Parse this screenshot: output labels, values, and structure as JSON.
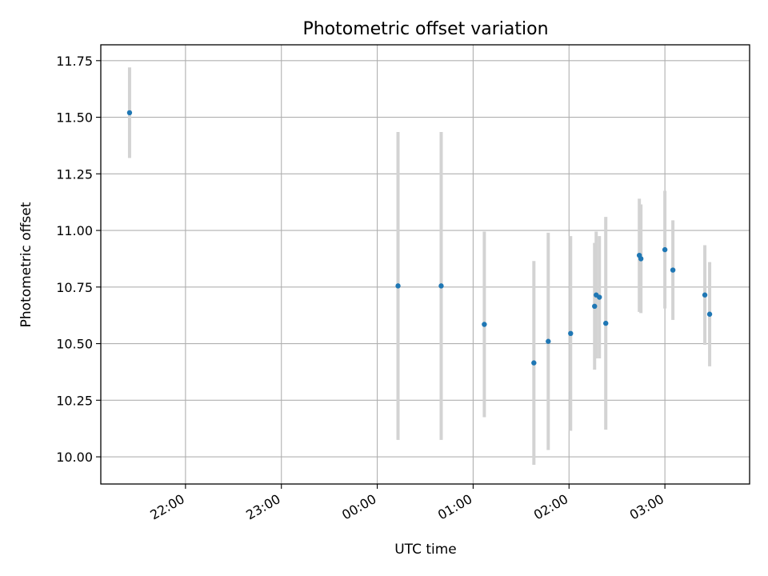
{
  "chart_data": {
    "type": "scatter",
    "title": "Photometric offset variation",
    "xlabel": "UTC time",
    "ylabel": "Photometric offset",
    "x_ticks": [
      "22:00",
      "23:00",
      "00:00",
      "01:00",
      "02:00",
      "03:00"
    ],
    "y_ticks": [
      "10.00",
      "10.25",
      "10.50",
      "10.75",
      "11.00",
      "11.25",
      "11.50",
      "11.75"
    ],
    "xlim": [
      "21:07",
      "03:53"
    ],
    "ylim": [
      9.88,
      11.82
    ],
    "grid": true,
    "colors": {
      "point": "#1f77b4",
      "errorbar": "#d3d3d3"
    },
    "points": [
      {
        "time": "21:25",
        "y": 11.52,
        "err": 0.2
      },
      {
        "time": "00:13",
        "y": 10.755,
        "err": 0.68
      },
      {
        "time": "00:40",
        "y": 10.755,
        "err": 0.68
      },
      {
        "time": "01:07",
        "y": 10.585,
        "err": 0.41
      },
      {
        "time": "01:38",
        "y": 10.415,
        "err": 0.45
      },
      {
        "time": "01:47",
        "y": 10.51,
        "err": 0.48
      },
      {
        "time": "02:01",
        "y": 10.545,
        "err": 0.43
      },
      {
        "time": "02:16",
        "y": 10.665,
        "err": 0.28
      },
      {
        "time": "02:17",
        "y": 10.715,
        "err": 0.28
      },
      {
        "time": "02:19",
        "y": 10.705,
        "err": 0.27
      },
      {
        "time": "02:23",
        "y": 10.59,
        "err": 0.47
      },
      {
        "time": "02:44",
        "y": 10.89,
        "err": 0.25
      },
      {
        "time": "02:45",
        "y": 10.875,
        "err": 0.24
      },
      {
        "time": "03:00",
        "y": 10.915,
        "err": 0.26
      },
      {
        "time": "03:05",
        "y": 10.825,
        "err": 0.22
      },
      {
        "time": "03:25",
        "y": 10.715,
        "err": 0.22
      },
      {
        "time": "03:28",
        "y": 10.63,
        "err": 0.23
      }
    ]
  }
}
